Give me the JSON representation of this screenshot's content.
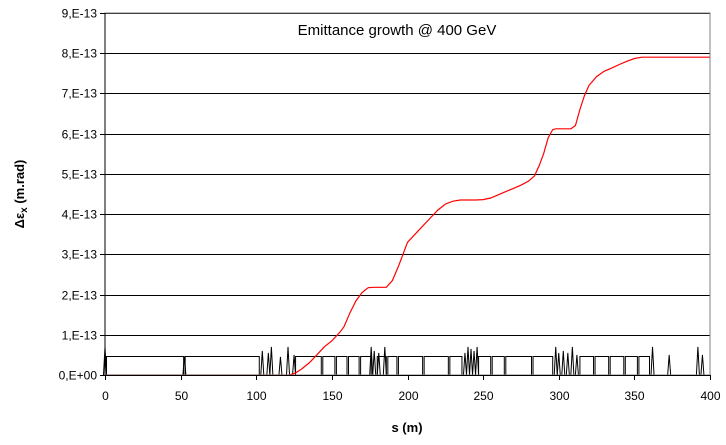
{
  "chart_data": {
    "type": "line",
    "title": "Emittance growth @ 400 GeV",
    "xlabel": "s (m)",
    "ylabel_main": "Δε",
    "ylabel_sub": "x",
    "ylabel_unit": " (m.rad)",
    "xlim": [
      0,
      400
    ],
    "ylim": [
      0,
      9e-13
    ],
    "x_ticks": [
      0,
      50,
      100,
      150,
      200,
      250,
      300,
      350,
      400
    ],
    "x_tick_labels": [
      "0",
      "50",
      "100",
      "150",
      "200",
      "250",
      "300",
      "350",
      "400"
    ],
    "y_ticks": [
      0,
      1e-13,
      2e-13,
      3e-13,
      4e-13,
      5e-13,
      6e-13,
      7e-13,
      8e-13,
      9e-13
    ],
    "y_tick_labels": [
      "0,E+00",
      "1,E-13",
      "2,E-13",
      "3,E-13",
      "4,E-13",
      "5,E-13",
      "6,E-13",
      "7,E-13",
      "8,E-13",
      "9,E-13"
    ],
    "grid": {
      "horizontal": true,
      "vertical": false
    },
    "legend": "none",
    "series": [
      {
        "color": "#ff0000",
        "x": [
          0,
          100,
          122,
          126,
          130,
          135,
          140,
          145,
          150,
          155,
          158,
          162,
          166,
          170,
          174,
          178,
          182,
          186,
          190,
          194,
          197,
          200,
          205,
          210,
          215,
          220,
          225,
          230,
          235,
          240,
          245,
          250,
          255,
          260,
          265,
          270,
          275,
          280,
          284,
          287,
          290,
          293,
          296,
          298,
          300,
          304,
          308,
          311,
          314,
          317,
          320,
          325,
          330,
          335,
          340,
          345,
          350,
          355,
          360,
          400
        ],
        "y": [
          0,
          0,
          0,
          5e-15,
          1.5e-14,
          3e-14,
          5e-14,
          7e-14,
          8.5e-14,
          1.05e-13,
          1.2e-13,
          1.55e-13,
          1.85e-13,
          2.05e-13,
          2.17e-13,
          2.18e-13,
          2.18e-13,
          2.18e-13,
          2.35e-13,
          2.7e-13,
          3e-13,
          3.3e-13,
          3.5e-13,
          3.7e-13,
          3.9e-13,
          4.1e-13,
          4.25e-13,
          4.32e-13,
          4.35e-13,
          4.35e-13,
          4.35e-13,
          4.36e-13,
          4.4e-13,
          4.48e-13,
          4.56e-13,
          4.64e-13,
          4.72e-13,
          4.82e-13,
          4.95e-13,
          5.2e-13,
          5.5e-13,
          5.9e-13,
          6.1e-13,
          6.12e-13,
          6.12e-13,
          6.12e-13,
          6.12e-13,
          6.2e-13,
          6.6e-13,
          6.95e-13,
          7.2e-13,
          7.42e-13,
          7.55e-13,
          7.63e-13,
          7.72e-13,
          7.8e-13,
          7.87e-13,
          7.9e-13,
          7.9e-13,
          7.9e-13
        ]
      }
    ],
    "lattice_overlay": {
      "color": "#000000",
      "y_top": 4.6e-14,
      "dipole_blocks": [
        [
          1,
          52
        ],
        [
          53,
          102
        ],
        [
          126,
          143
        ],
        [
          144,
          152
        ],
        [
          153,
          160
        ],
        [
          161,
          168
        ],
        [
          169,
          176
        ],
        [
          180,
          186
        ],
        [
          187,
          193
        ],
        [
          194,
          210
        ],
        [
          211,
          227
        ],
        [
          228,
          236
        ],
        [
          247,
          255
        ],
        [
          256,
          264
        ],
        [
          265,
          282
        ],
        [
          283,
          296
        ],
        [
          314,
          323
        ],
        [
          324,
          333
        ],
        [
          334,
          343
        ],
        [
          344,
          352
        ],
        [
          353,
          360
        ]
      ],
      "quad_spikes": [
        {
          "x": 0,
          "h": 7e-14
        },
        {
          "x": 52.5,
          "h": 4.6e-14
        },
        {
          "x": 104,
          "h": 6e-14
        },
        {
          "x": 108,
          "h": 5.5e-14
        },
        {
          "x": 110,
          "h": 7e-14
        },
        {
          "x": 116,
          "h": 4.5e-14
        },
        {
          "x": 121,
          "h": 7e-14
        },
        {
          "x": 125,
          "h": 5e-14
        },
        {
          "x": 176,
          "h": 7e-14
        },
        {
          "x": 178,
          "h": 6e-14
        },
        {
          "x": 181,
          "h": 5.5e-14
        },
        {
          "x": 185,
          "h": 7e-14
        },
        {
          "x": 238,
          "h": 5.5e-14
        },
        {
          "x": 240,
          "h": 7e-14
        },
        {
          "x": 242,
          "h": 6.5e-14
        },
        {
          "x": 244,
          "h": 6e-14
        },
        {
          "x": 246,
          "h": 7e-14
        },
        {
          "x": 298,
          "h": 7e-14
        },
        {
          "x": 300,
          "h": 5.5e-14
        },
        {
          "x": 303,
          "h": 6e-14
        },
        {
          "x": 306,
          "h": 5.5e-14
        },
        {
          "x": 309,
          "h": 7e-14
        },
        {
          "x": 312,
          "h": 5e-14
        },
        {
          "x": 362,
          "h": 7e-14
        },
        {
          "x": 373,
          "h": 5e-14
        },
        {
          "x": 392,
          "h": 7e-14
        },
        {
          "x": 395,
          "h": 5e-14
        }
      ]
    }
  }
}
